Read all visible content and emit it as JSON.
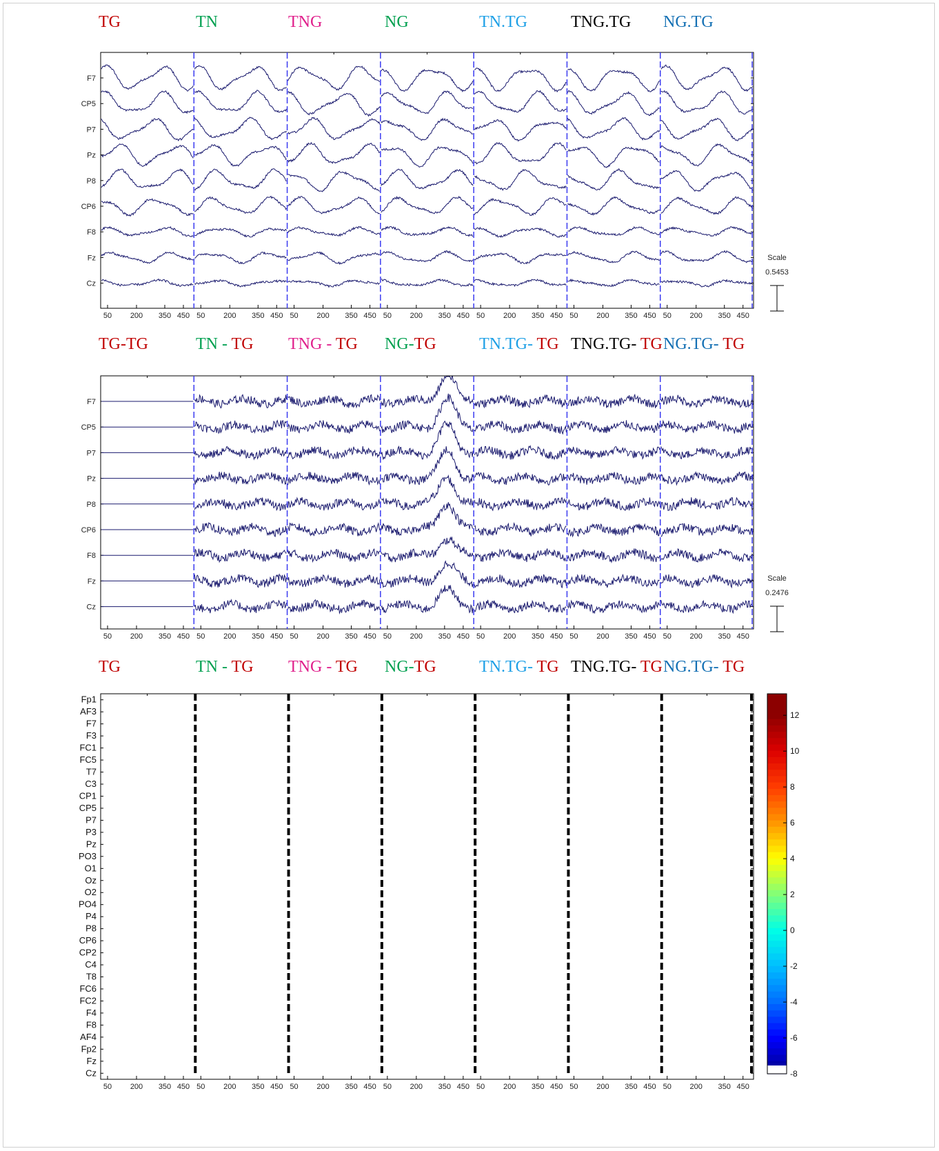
{
  "colors": {
    "TG": "#c00000",
    "TN": "#00a050",
    "TNG": "#e0208c",
    "NG": "#00a050",
    "TN.TG": "#1ea0e6",
    "TNG.TG": "#000000",
    "NG.TG": "#1470b4",
    "trace": "#1a1a6e",
    "divider": "#3a3af0"
  },
  "panel1": {
    "segments": [
      {
        "parts": [
          {
            "text": "TG",
            "color": "TG"
          }
        ]
      },
      {
        "parts": [
          {
            "text": "TN",
            "color": "TN"
          }
        ]
      },
      {
        "parts": [
          {
            "text": "TNG",
            "color": "TNG"
          }
        ]
      },
      {
        "parts": [
          {
            "text": "NG",
            "color": "NG"
          }
        ]
      },
      {
        "parts": [
          {
            "text": "TN.TG",
            "color": "TN.TG"
          }
        ]
      },
      {
        "parts": [
          {
            "text": "TNG.TG",
            "color": "TNG.TG"
          }
        ]
      },
      {
        "parts": [
          {
            "text": "NG.TG",
            "color": "NG.TG"
          }
        ]
      }
    ],
    "channels": [
      "F7",
      "CP5",
      "P7",
      "Pz",
      "P8",
      "CP6",
      "F8",
      "Fz",
      "Cz"
    ],
    "scale_label": "Scale",
    "scale_value": "0.5453"
  },
  "panel2": {
    "segments": [
      {
        "parts": [
          {
            "text": "TG-TG",
            "color": "TG"
          }
        ]
      },
      {
        "parts": [
          {
            "text": "TN - ",
            "color": "TN"
          },
          {
            "text": "TG",
            "color": "TG"
          }
        ]
      },
      {
        "parts": [
          {
            "text": "TNG - ",
            "color": "TNG"
          },
          {
            "text": "TG",
            "color": "TG"
          }
        ]
      },
      {
        "parts": [
          {
            "text": "NG-",
            "color": "NG"
          },
          {
            "text": "TG",
            "color": "TG"
          }
        ]
      },
      {
        "parts": [
          {
            "text": "TN.TG- ",
            "color": "TN.TG"
          },
          {
            "text": "TG",
            "color": "TG"
          }
        ]
      },
      {
        "parts": [
          {
            "text": "TNG.TG- ",
            "color": "TNG.TG"
          },
          {
            "text": "TG",
            "color": "TG"
          }
        ]
      },
      {
        "parts": [
          {
            "text": "NG.TG- ",
            "color": "NG.TG"
          },
          {
            "text": "TG",
            "color": "TG"
          }
        ]
      }
    ],
    "channels": [
      "F7",
      "CP5",
      "P7",
      "Pz",
      "P8",
      "CP6",
      "F8",
      "Fz",
      "Cz"
    ],
    "scale_label": "Scale",
    "scale_value": "0.2476"
  },
  "panel3": {
    "segments": [
      {
        "parts": [
          {
            "text": "TG",
            "color": "TG"
          }
        ]
      },
      {
        "parts": [
          {
            "text": "TN - ",
            "color": "TN"
          },
          {
            "text": "TG",
            "color": "TG"
          }
        ]
      },
      {
        "parts": [
          {
            "text": "TNG - ",
            "color": "TNG"
          },
          {
            "text": "TG",
            "color": "TG"
          }
        ]
      },
      {
        "parts": [
          {
            "text": "NG-",
            "color": "NG"
          },
          {
            "text": "TG",
            "color": "TG"
          }
        ]
      },
      {
        "parts": [
          {
            "text": "TN.TG- ",
            "color": "TN.TG"
          },
          {
            "text": "TG",
            "color": "TG"
          }
        ]
      },
      {
        "parts": [
          {
            "text": "TNG.TG- ",
            "color": "TNG.TG"
          },
          {
            "text": "TG",
            "color": "TG"
          }
        ]
      },
      {
        "parts": [
          {
            "text": "NG.TG- ",
            "color": "NG.TG"
          },
          {
            "text": "TG",
            "color": "TG"
          }
        ]
      }
    ],
    "channels": [
      "Fp1",
      "AF3",
      "F7",
      "F3",
      "FC1",
      "FC5",
      "T7",
      "C3",
      "CP1",
      "CP5",
      "P7",
      "P3",
      "Pz",
      "PO3",
      "O1",
      "Oz",
      "O2",
      "PO4",
      "P4",
      "P8",
      "CP6",
      "CP2",
      "C4",
      "T8",
      "FC6",
      "FC2",
      "F4",
      "F8",
      "AF4",
      "Fp2",
      "Fz",
      "Cz"
    ],
    "colorbar_ticks": [
      "12",
      "10",
      "8",
      "6",
      "4",
      "2",
      "0",
      "-2",
      "-4",
      "-6",
      "-8"
    ]
  },
  "chart_data": [
    {
      "type": "line",
      "x_tick_labels": [
        "50",
        "200",
        "350",
        "450"
      ],
      "segments": [
        "TG",
        "TN",
        "TNG",
        "NG",
        "TN.TG",
        "TNG.TG",
        "NG.TG"
      ],
      "channels": [
        "F7",
        "CP5",
        "P7",
        "Pz",
        "P8",
        "CP6",
        "F8",
        "Fz",
        "Cz"
      ],
      "scale": 0.5453
    },
    {
      "type": "line",
      "x_tick_labels": [
        "50",
        "200",
        "350",
        "450"
      ],
      "segments": [
        "TG-TG",
        "TN - TG",
        "TNG - TG",
        "NG-TG",
        "TN.TG- TG",
        "TNG.TG- TG",
        "NG.TG- TG"
      ],
      "channels": [
        "F7",
        "CP5",
        "P7",
        "Pz",
        "P8",
        "CP6",
        "F8",
        "Fz",
        "Cz"
      ],
      "scale": 0.2476
    },
    {
      "type": "heatmap",
      "x_tick_labels": [
        "50",
        "200",
        "350",
        "450"
      ],
      "segments": [
        "TG",
        "TN - TG",
        "TNG - TG",
        "NG-TG",
        "TN.TG- TG",
        "TNG.TG- TG",
        "NG.TG- TG"
      ],
      "channels": [
        "Fp1",
        "AF3",
        "F7",
        "F3",
        "FC1",
        "FC5",
        "T7",
        "C3",
        "CP1",
        "CP5",
        "P7",
        "P3",
        "Pz",
        "PO3",
        "O1",
        "Oz",
        "O2",
        "PO4",
        "P4",
        "P8",
        "CP6",
        "CP2",
        "C4",
        "T8",
        "FC6",
        "FC2",
        "F4",
        "F8",
        "AF4",
        "Fp2",
        "Fz",
        "Cz"
      ],
      "colorbar_range": [
        -8,
        12
      ]
    }
  ]
}
